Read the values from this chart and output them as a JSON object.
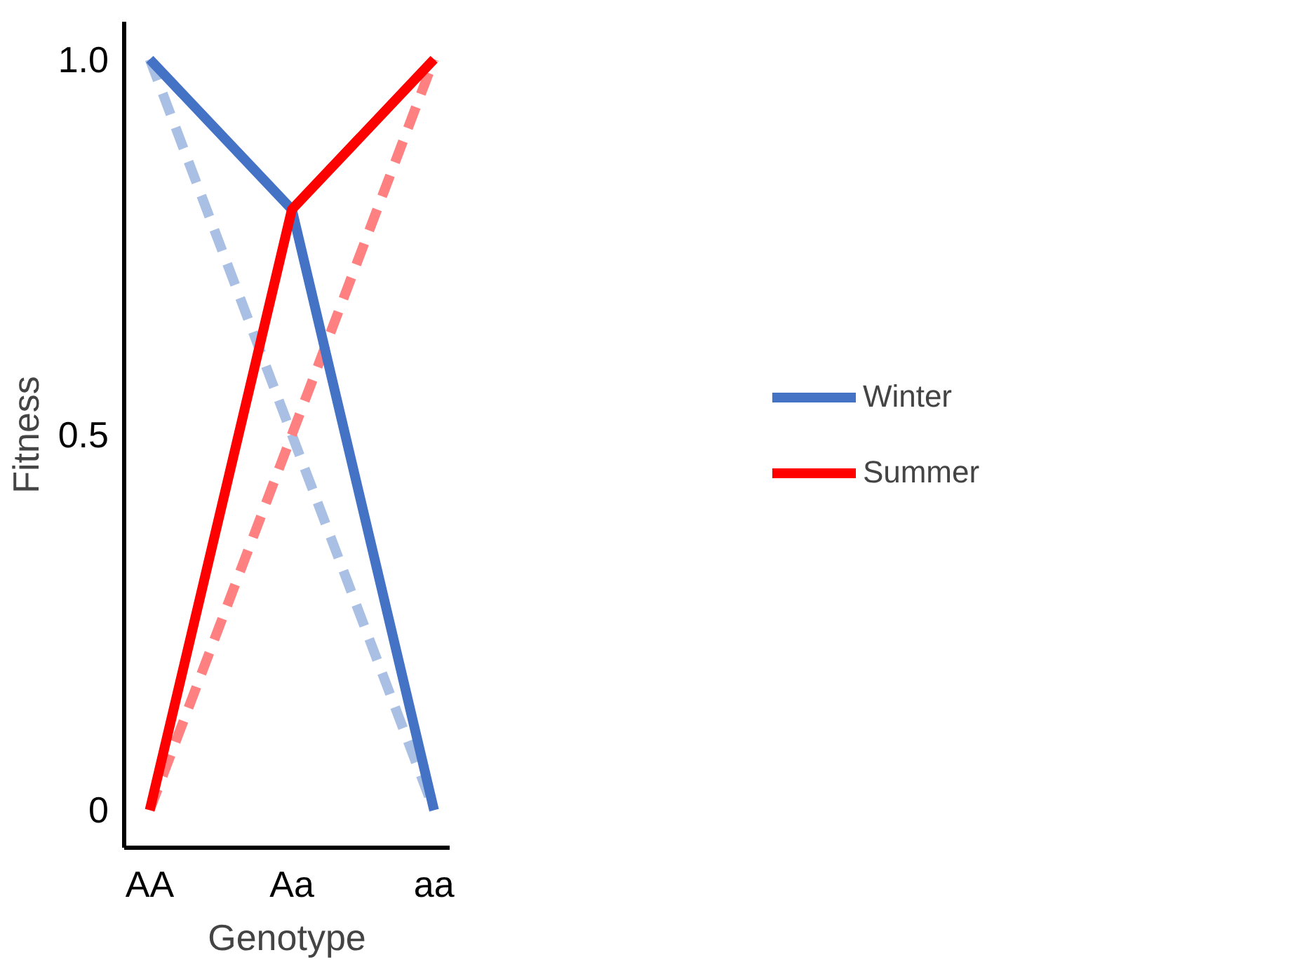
{
  "chart_data": {
    "type": "line",
    "xlabel": "Genotype",
    "ylabel": "Fitness",
    "categories": [
      "AA",
      "Aa",
      "aa"
    ],
    "series": [
      {
        "color": "#a9bfe4",
        "values": [
          1,
          0.5,
          0
        ],
        "line_style": "dashed"
      },
      {
        "color": "#ff8080",
        "values": [
          0,
          0.5,
          1
        ],
        "line_style": "dashed"
      },
      {
        "name": "Winter",
        "color": "#4472c4",
        "values": [
          1,
          0.8,
          0
        ],
        "line_style": "solid"
      },
      {
        "name": "Summer",
        "color": "#ff0000",
        "values": [
          0,
          0.8,
          1
        ],
        "line_style": "solid"
      }
    ],
    "ylim": [
      -0.05,
      1.05
    ],
    "yticks": [
      0,
      {
        "value": 0.5,
        "label": "0.5"
      },
      {
        "value": 1,
        "label": "1.0"
      }
    ],
    "grid": false,
    "legend": "right",
    "marker": "none"
  }
}
